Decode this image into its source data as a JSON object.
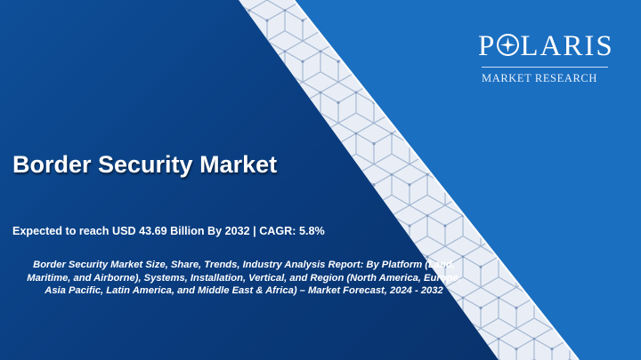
{
  "logo": {
    "word_start": "P",
    "word_end": "LARIS",
    "subtitle": "MARKET RESEARCH"
  },
  "title": "Border Security Market",
  "subtitle": "Expected to reach USD 43.69 Billion By 2032 | CAGR: 5.8%",
  "description": "Border Security Market Size, Share, Trends, Industry Analysis Report: By Platform (Land, Maritime, and Airborne), Systems, Installation, Vertical, and Region (North America, Europe, Asia Pacific, Latin America, and Middle East & Africa) – Market Forecast, 2024 - 2032",
  "colors": {
    "left_panel": "#0a3c7e",
    "right_panel": "#1b6fc0",
    "band": "#e9eef6",
    "band_lines": "#9fb3cf"
  }
}
